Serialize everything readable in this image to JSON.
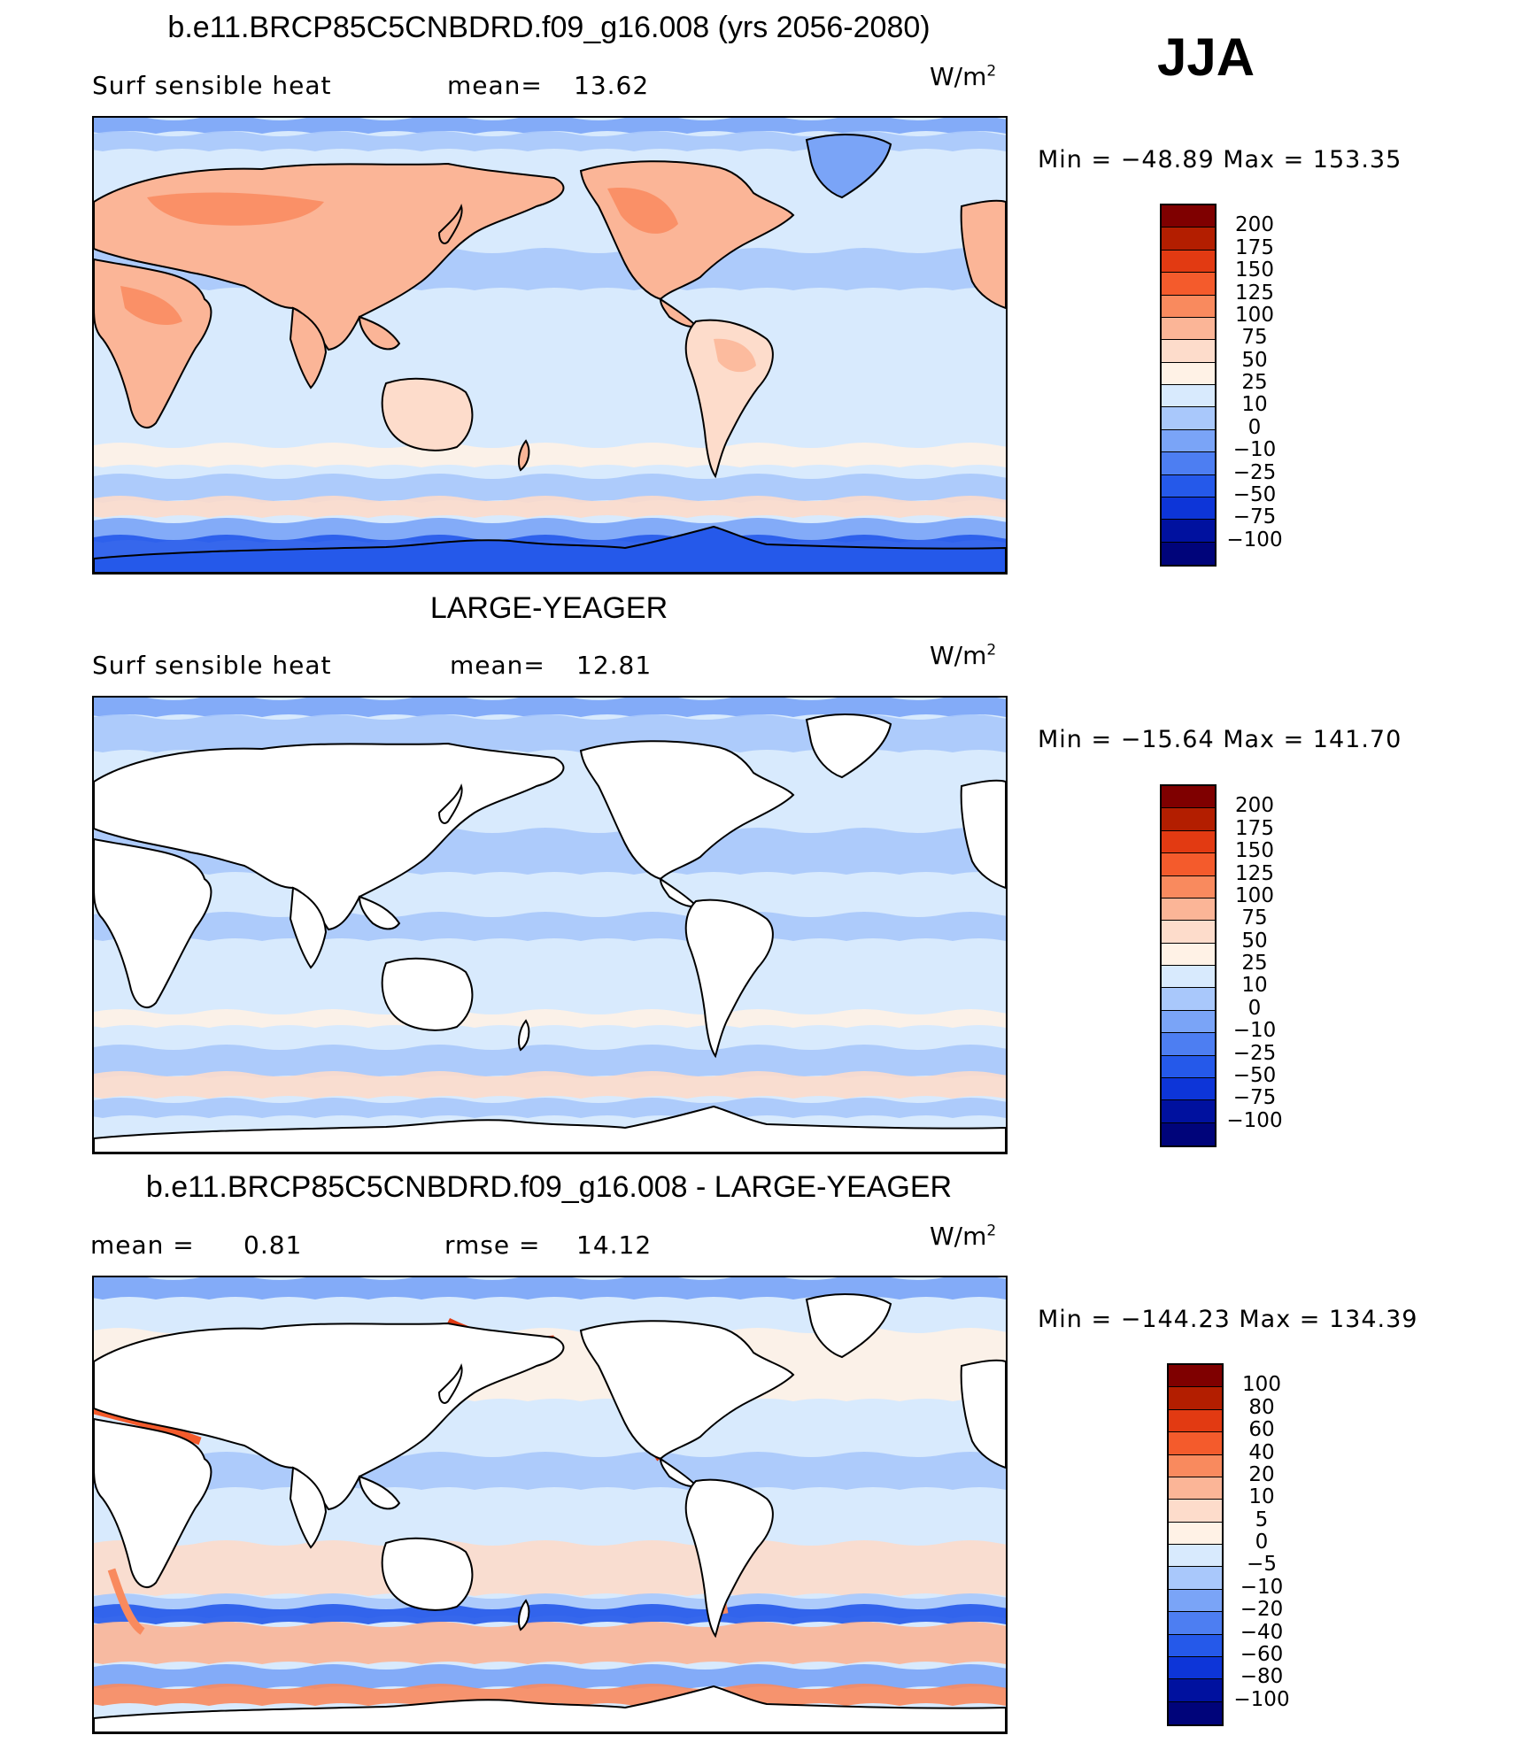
{
  "season": "JJA",
  "units": "W/m",
  "units_exp": "2",
  "panels": [
    {
      "title": "b.e11.BRCP85C5CNBDRD.f09_g16.008 (yrs 2056-2080)",
      "left_label": "Surf  sensible  heat",
      "stat_label": "mean=",
      "stat_value": "13.62",
      "min_max": "Min  =  −48.89  Max  =  153.35",
      "map_style": "model",
      "colorbar": {
        "labels": [
          "200",
          "175",
          "150",
          "125",
          "100",
          "75",
          "50",
          "25",
          "10",
          "0",
          "−10",
          "−25",
          "−50",
          "−75",
          "−100"
        ],
        "colors": [
          "#7f0000",
          "#b31e00",
          "#e23a12",
          "#f45b2c",
          "#f98a5e",
          "#fbb597",
          "#fddccb",
          "#fff2e6",
          "#d8eafd",
          "#a9c8fb",
          "#7aa4f7",
          "#4d7ef2",
          "#2559ea",
          "#0d35d8",
          "#00119f",
          "#00047a"
        ]
      }
    },
    {
      "title": "LARGE-YEAGER",
      "left_label": "Surf  sensible  heat",
      "stat_label": "mean=",
      "stat_value": "12.81",
      "min_max": "Min  =  −15.64  Max  =  141.70",
      "map_style": "obs",
      "colorbar": {
        "labels": [
          "200",
          "175",
          "150",
          "125",
          "100",
          "75",
          "50",
          "25",
          "10",
          "0",
          "−10",
          "−25",
          "−50",
          "−75",
          "−100"
        ],
        "colors": [
          "#7f0000",
          "#b31e00",
          "#e23a12",
          "#f45b2c",
          "#f98a5e",
          "#fbb597",
          "#fddccb",
          "#fff2e6",
          "#d8eafd",
          "#a9c8fb",
          "#7aa4f7",
          "#4d7ef2",
          "#2559ea",
          "#0d35d8",
          "#00119f",
          "#00047a"
        ]
      }
    },
    {
      "title": "b.e11.BRCP85C5CNBDRD.f09_g16.008 - LARGE-YEAGER",
      "left_label": "mean  =",
      "left_value": "0.81",
      "stat_label": "rmse  =",
      "stat_value": "14.12",
      "min_max": "Min  =  −144.23  Max  =  134.39",
      "map_style": "diff",
      "colorbar": {
        "labels": [
          "100",
          "80",
          "60",
          "40",
          "20",
          "10",
          "5",
          "0",
          "−5",
          "−10",
          "−20",
          "−40",
          "−60",
          "−80",
          "−100"
        ],
        "colors": [
          "#7f0000",
          "#b31e00",
          "#e23a12",
          "#f45b2c",
          "#f98a5e",
          "#fbb597",
          "#fddccb",
          "#fff2e6",
          "#d8eafd",
          "#a9c8fb",
          "#7aa4f7",
          "#4d7ef2",
          "#2559ea",
          "#0d35d8",
          "#00119f",
          "#00047a"
        ]
      }
    }
  ]
}
